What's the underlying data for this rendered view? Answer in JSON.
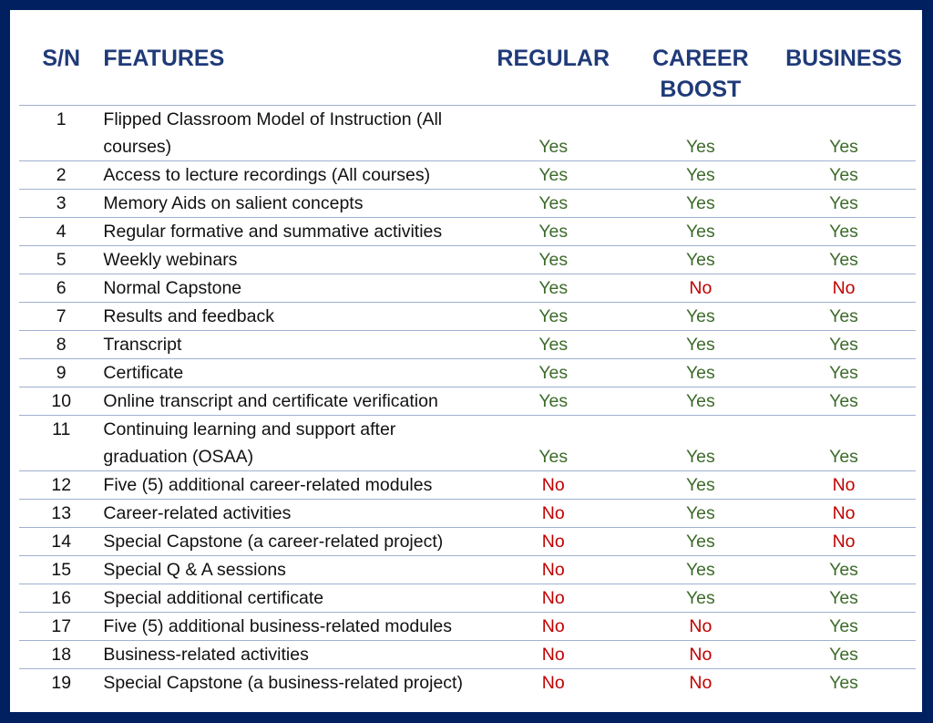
{
  "headers": {
    "sn": "S/N",
    "features": "FEATURES",
    "regular": "REGULAR",
    "career_line1": "CAREER",
    "career_line2": "BOOST",
    "business": "BUSINESS"
  },
  "colors": {
    "border": "#002060",
    "header": "#1f3a78",
    "yes": "#3d6b2a",
    "no": "#c00000"
  },
  "rows": [
    {
      "sn": "1",
      "feature": "Flipped Classroom Model of Instruction (All courses)",
      "regular": "Yes",
      "career": "Yes",
      "business": "Yes"
    },
    {
      "sn": "2",
      "feature": "Access to lecture recordings (All courses)",
      "regular": "Yes",
      "career": "Yes",
      "business": "Yes"
    },
    {
      "sn": "3",
      "feature": "Memory Aids on salient concepts",
      "regular": "Yes",
      "career": "Yes",
      "business": "Yes"
    },
    {
      "sn": "4",
      "feature": "Regular formative and summative activities",
      "regular": "Yes",
      "career": "Yes",
      "business": "Yes"
    },
    {
      "sn": "5",
      "feature": "Weekly webinars",
      "regular": "Yes",
      "career": "Yes",
      "business": "Yes"
    },
    {
      "sn": "6",
      "feature": "Normal Capstone",
      "regular": "Yes",
      "career": "No",
      "business": "No"
    },
    {
      "sn": "7",
      "feature": "Results and feedback",
      "regular": "Yes",
      "career": "Yes",
      "business": "Yes"
    },
    {
      "sn": "8",
      "feature": "Transcript",
      "regular": "Yes",
      "career": "Yes",
      "business": "Yes"
    },
    {
      "sn": "9",
      "feature": "Certificate",
      "regular": "Yes",
      "career": "Yes",
      "business": "Yes"
    },
    {
      "sn": "10",
      "feature": "Online transcript and certificate verification",
      "regular": "Yes",
      "career": "Yes",
      "business": "Yes"
    },
    {
      "sn": "11",
      "feature": "Continuing learning and support after graduation (OSAA)",
      "regular": "Yes",
      "career": "Yes",
      "business": "Yes"
    },
    {
      "sn": "12",
      "feature": "Five (5) additional career-related modules",
      "regular": "No",
      "career": "Yes",
      "business": "No"
    },
    {
      "sn": "13",
      "feature": "Career-related activities",
      "regular": "No",
      "career": "Yes",
      "business": "No"
    },
    {
      "sn": "14",
      "feature": "Special Capstone (a career-related project)",
      "regular": "No",
      "career": "Yes",
      "business": "No"
    },
    {
      "sn": "15",
      "feature": "Special Q & A sessions",
      "regular": "No",
      "career": "Yes",
      "business": "Yes"
    },
    {
      "sn": "16",
      "feature": "Special additional certificate",
      "regular": "No",
      "career": "Yes",
      "business": "Yes"
    },
    {
      "sn": "17",
      "feature": "Five (5) additional business-related modules",
      "regular": "No",
      "career": "No",
      "business": "Yes"
    },
    {
      "sn": "18",
      "feature": "Business-related activities",
      "regular": "No",
      "career": "No",
      "business": "Yes"
    },
    {
      "sn": "19",
      "feature": "Special Capstone (a business-related project)",
      "regular": "No",
      "career": "No",
      "business": "Yes"
    }
  ]
}
